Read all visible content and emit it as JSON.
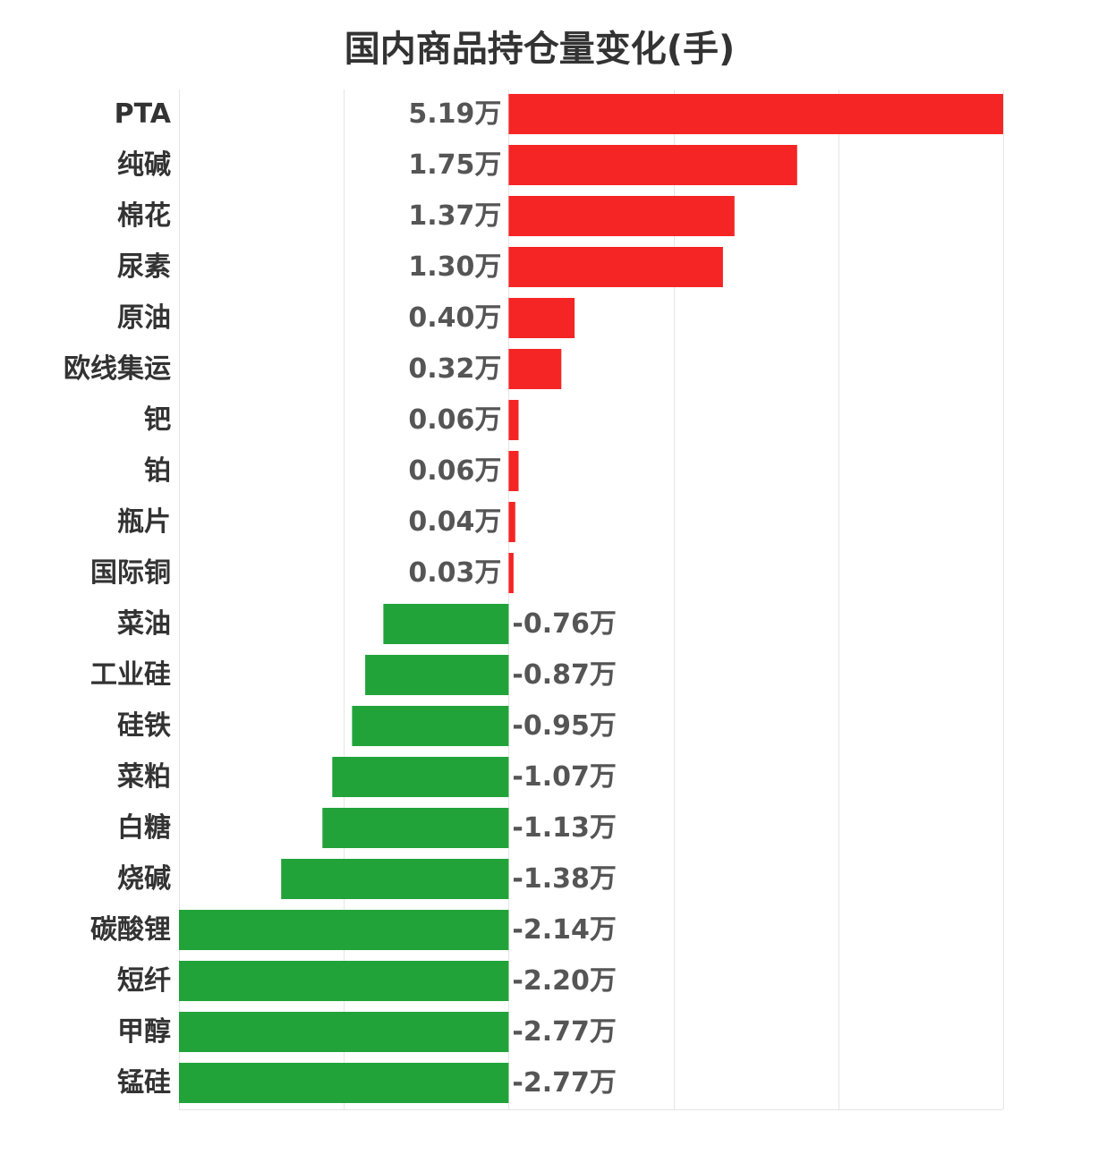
{
  "chart_data": {
    "type": "bar",
    "orientation": "horizontal",
    "title": "国内商品持仓量变化(手)",
    "xlabel": "",
    "ylabel": "",
    "unit": "万",
    "xlim": [
      -2,
      3
    ],
    "grid": true,
    "legend": "none",
    "categories": [
      "PTA",
      "纯碱",
      "棉花",
      "尿素",
      "原油",
      "欧线集运",
      "钯",
      "铂",
      "瓶片",
      "国际铜",
      "菜油",
      "工业硅",
      "硅铁",
      "菜粕",
      "白糖",
      "烧碱",
      "碳酸锂",
      "短纤",
      "甲醇",
      "锰硅"
    ],
    "values": [
      5.19,
      1.75,
      1.37,
      1.3,
      0.4,
      0.32,
      0.06,
      0.06,
      0.04,
      0.03,
      -0.76,
      -0.87,
      -0.95,
      -1.07,
      -1.13,
      -1.38,
      -2.14,
      -2.2,
      -2.77,
      -2.77
    ],
    "value_labels": [
      "5.19万",
      "1.75万",
      "1.37万",
      "1.30万",
      "0.40万",
      "0.32万",
      "0.06万",
      "0.06万",
      "0.04万",
      "0.03万",
      "-0.76万",
      "-0.87万",
      "-0.95万",
      "-1.07万",
      "-1.13万",
      "-1.38万",
      "-2.14万",
      "-2.20万",
      "-2.77万",
      "-2.77万"
    ],
    "colors": {
      "positive": "#f52525",
      "negative": "#21a33a",
      "grid": "#e6e6e6",
      "category_text": "#333333",
      "value_text": "#555555"
    }
  }
}
